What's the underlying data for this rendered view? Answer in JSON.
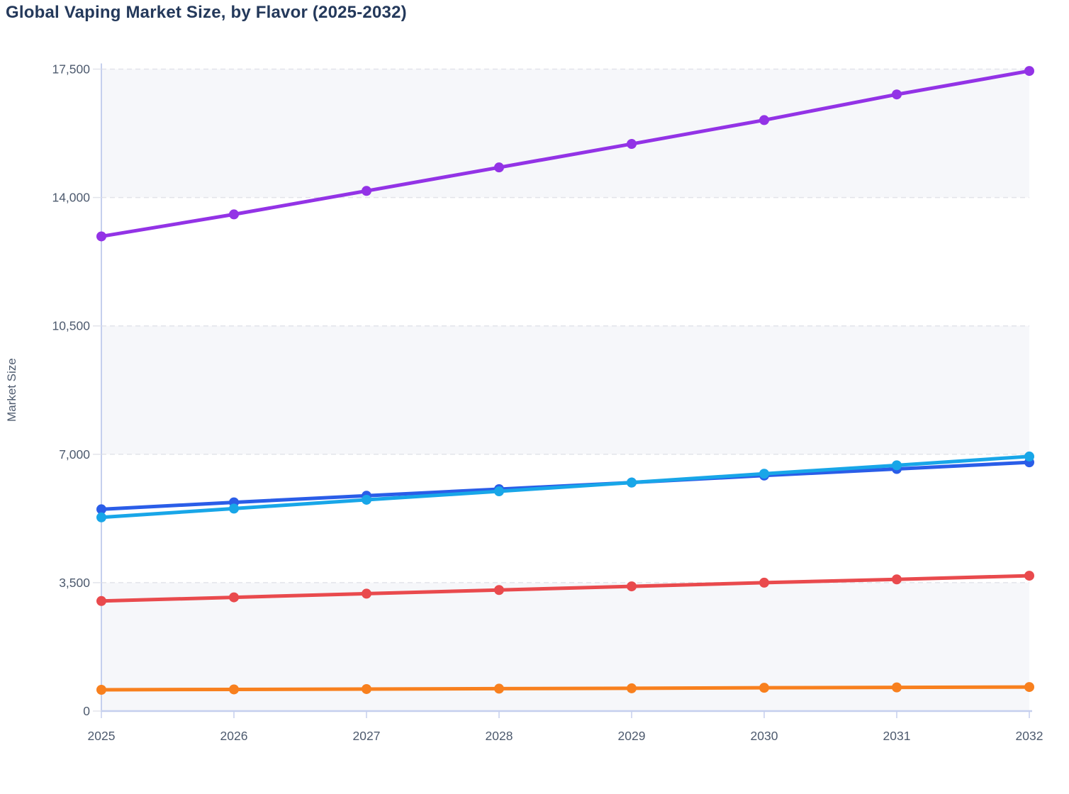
{
  "title": "Global Vaping Market Size, by Flavor (2025-2032)",
  "chart_data": {
    "type": "line",
    "title": "Global Vaping Market Size, by Flavor (2025-2032)",
    "xlabel": "",
    "ylabel": "Market Size",
    "x": [
      "2025",
      "2026",
      "2027",
      "2028",
      "2029",
      "2030",
      "2031",
      "2032"
    ],
    "series": [
      {
        "name": "purple-series",
        "color": "#9333e6",
        "values": [
          12940,
          13540,
          14180,
          14820,
          15460,
          16110,
          16810,
          17450
        ]
      },
      {
        "name": "blue-series",
        "color": "#2a5de8",
        "values": [
          5500,
          5690,
          5870,
          6050,
          6230,
          6420,
          6600,
          6780
        ]
      },
      {
        "name": "cyan-series",
        "color": "#18a6e8",
        "values": [
          5280,
          5520,
          5760,
          5990,
          6230,
          6470,
          6700,
          6940
        ]
      },
      {
        "name": "red-series",
        "color": "#e94a4d",
        "values": [
          3000,
          3100,
          3200,
          3300,
          3400,
          3500,
          3590,
          3690
        ]
      },
      {
        "name": "orange-series",
        "color": "#f8801e",
        "values": [
          580,
          590,
          600,
          610,
          620,
          635,
          645,
          655
        ]
      }
    ],
    "ylim": [
      0,
      17500
    ],
    "y_ticks": [
      0,
      3500,
      7000,
      10500,
      14000,
      17500
    ],
    "y_tick_labels": [
      "0",
      "3,500",
      "7,000",
      "10,500",
      "14,000",
      "17,500"
    ],
    "grid": "horizontal dashed",
    "legend": "none",
    "band_ranges": [
      [
        0,
        3500
      ],
      [
        7000,
        10500
      ],
      [
        14000,
        17500
      ]
    ]
  },
  "style_colors": {
    "title_text": "#24395b",
    "tick_text": "#4d5a6e",
    "axis_line": "#c5cfee",
    "gridline": "#e2e4ea",
    "band_fill": "#f6f7fa"
  }
}
